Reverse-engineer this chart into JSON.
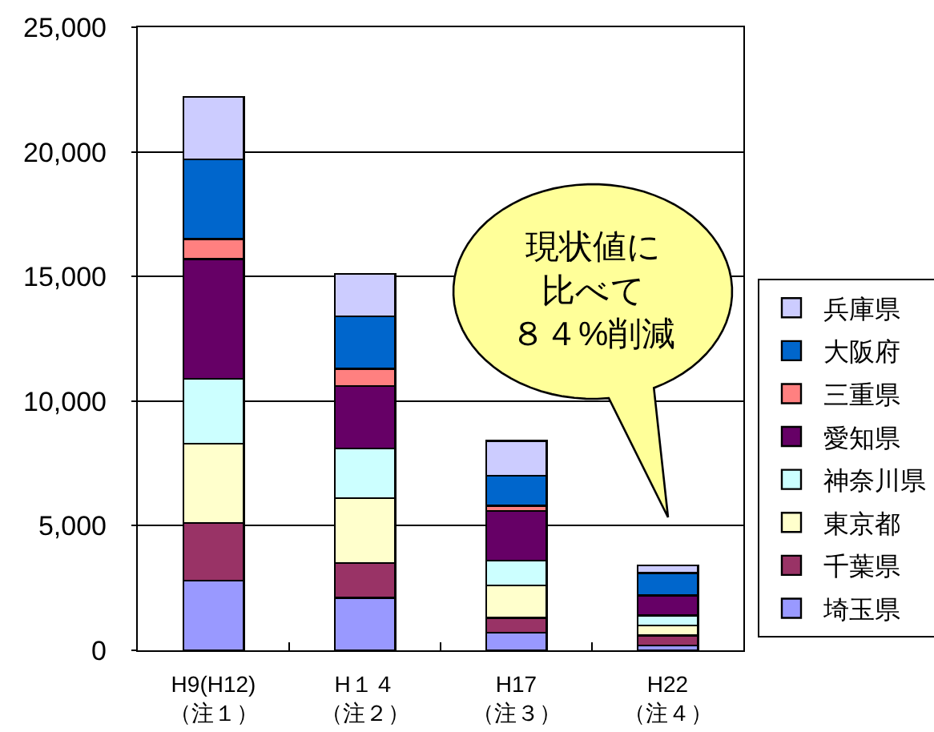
{
  "chart_data": {
    "type": "bar",
    "stacked": true,
    "categories": [
      "H9(H12)（注１）",
      "H１４（注２）",
      "H17（注３）",
      "H22（注４）"
    ],
    "series": [
      {
        "name": "埼玉県",
        "color": "#9999ff",
        "values": [
          2800,
          2100,
          700,
          200
        ]
      },
      {
        "name": "千葉県",
        "color": "#993366",
        "values": [
          2300,
          1400,
          600,
          400
        ]
      },
      {
        "name": "東京都",
        "color": "#ffffcc",
        "values": [
          3200,
          2600,
          1300,
          400
        ]
      },
      {
        "name": "神奈川県",
        "color": "#ccffff",
        "values": [
          2600,
          2000,
          1000,
          400
        ]
      },
      {
        "name": "愛知県",
        "color": "#660066",
        "values": [
          4800,
          2500,
          2000,
          800
        ]
      },
      {
        "name": "三重県",
        "color": "#ff8080",
        "values": [
          800,
          700,
          200,
          null
        ]
      },
      {
        "name": "大阪府",
        "color": "#0066cc",
        "values": [
          3200,
          2100,
          1200,
          900
        ]
      },
      {
        "name": "兵庫県",
        "color": "#ccccff",
        "values": [
          2500,
          1700,
          1400,
          300
        ]
      }
    ],
    "ylim": [
      0,
      25000
    ],
    "yticks": [
      0,
      {
        "value": 5000,
        "label": "5,000"
      },
      {
        "value": 10000,
        "label": "10,000"
      },
      {
        "value": 15000,
        "label": "15,000"
      },
      {
        "value": 20000,
        "label": "20,000"
      },
      {
        "value": 25000,
        "label": "25,000"
      }
    ],
    "grid": "y",
    "legend": "bottom right",
    "annotations": [
      "現状値に比べて８４%削減"
    ]
  }
}
